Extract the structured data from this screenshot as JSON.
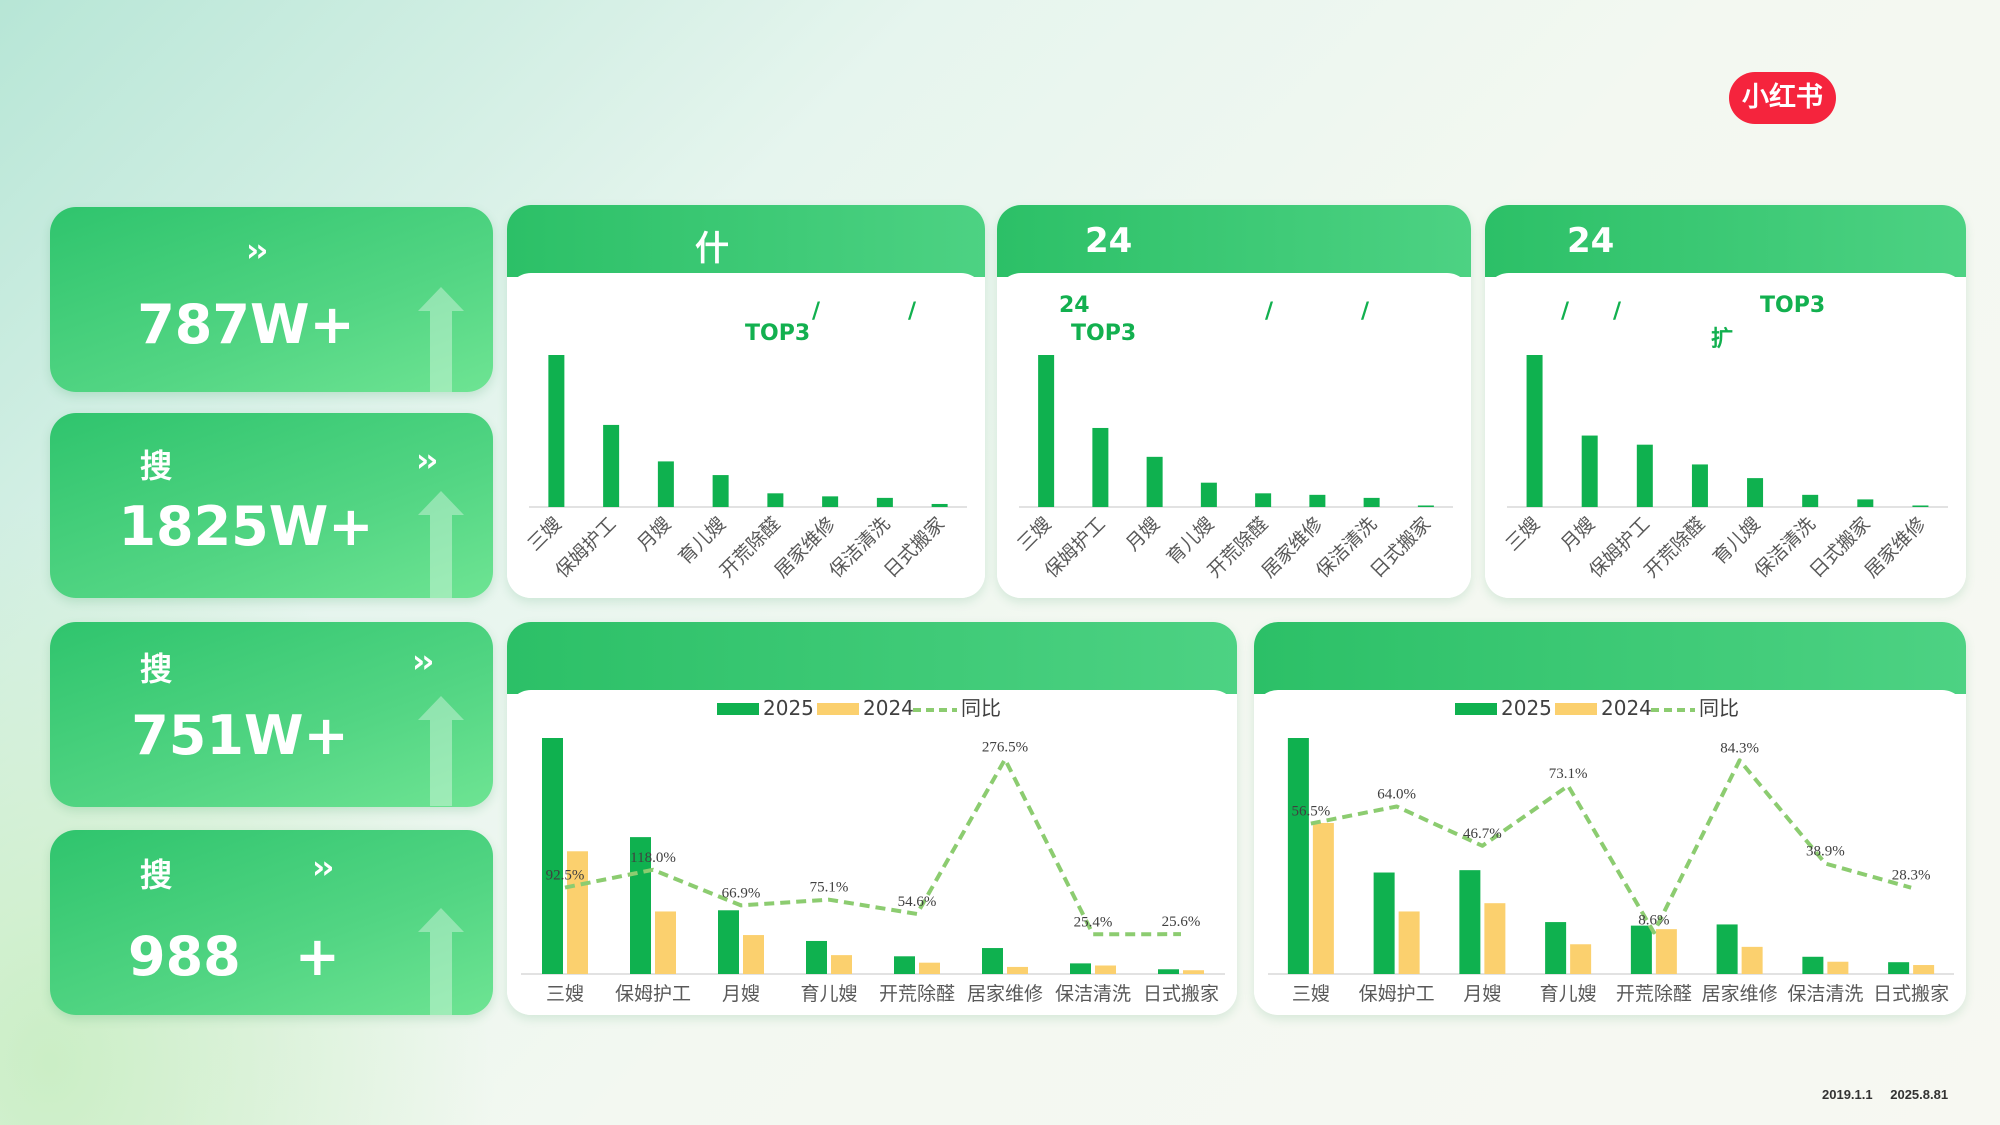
{
  "brand": {
    "logo_text": "小红书"
  },
  "metrics": [
    {
      "label": "",
      "chevron": "››",
      "value": "787W+"
    },
    {
      "label": "搜",
      "chevron": "››",
      "value": "1825W+"
    },
    {
      "label": "搜",
      "chevron": "››",
      "value": "751W+"
    },
    {
      "label": "搜",
      "chevron": "››",
      "value": "988　+"
    }
  ],
  "panels": {
    "top1": {
      "title": "什",
      "sub1": "/　　　　/",
      "sub2": "TOP3"
    },
    "top2": {
      "title": "24",
      "sub1": "24",
      "sub2": "TOP3",
      "sub3": "/　　　　/"
    },
    "top3": {
      "title": "24",
      "sub1": "/　　/",
      "sub2": "TOP3",
      "sub3": "扩"
    },
    "bottom1": {
      "title": ""
    },
    "bottom2": {
      "title": ""
    }
  },
  "footer": {
    "start": "2019.1.1",
    "end": "2025.8.81"
  },
  "chart_data": [
    {
      "type": "bar",
      "categories": [
        "三嫂",
        "保姆护工",
        "月嫂",
        "育儿嫂",
        "开荒除醛",
        "居家维修",
        "保洁清洗",
        "日式搬家"
      ],
      "values": [
        100,
        54,
        30,
        21,
        9,
        7,
        6,
        2
      ],
      "color": "#0fb14f",
      "ylim": [
        0,
        100
      ]
    },
    {
      "type": "bar",
      "categories": [
        "三嫂",
        "保姆护工",
        "月嫂",
        "育儿嫂",
        "开荒除醛",
        "居家维修",
        "保洁清洗",
        "日式搬家"
      ],
      "values": [
        100,
        52,
        33,
        16,
        9,
        8,
        6,
        1
      ],
      "color": "#0fb14f",
      "ylim": [
        0,
        100
      ]
    },
    {
      "type": "bar",
      "categories": [
        "三嫂",
        "月嫂",
        "保姆护工",
        "开荒除醛",
        "育儿嫂",
        "保洁清洗",
        "日式搬家",
        "居家维修"
      ],
      "values": [
        100,
        47,
        41,
        28,
        19,
        8,
        5,
        1
      ],
      "color": "#0fb14f",
      "ylim": [
        0,
        100
      ]
    },
    {
      "type": "bar",
      "categories": [
        "三嫂",
        "保姆护工",
        "月嫂",
        "育儿嫂",
        "开荒除醛",
        "居家维修",
        "保洁清洗",
        "日式搬家"
      ],
      "series": [
        {
          "name": "2025",
          "values": [
            100,
            58,
            27,
            14,
            7.5,
            11,
            4.5,
            2
          ],
          "color": "#0fb14f"
        },
        {
          "name": "2024",
          "values": [
            52,
            26.5,
            16.5,
            8,
            4.8,
            3,
            3.6,
            1.6
          ],
          "color": "#fbd06e"
        },
        {
          "name": "同比",
          "type": "line",
          "values": [
            92.5,
            118.0,
            66.9,
            75.1,
            54.6,
            276.5,
            25.4,
            25.6
          ],
          "labels": [
            "92.5%",
            "118.0%",
            "66.9%",
            "75.1%",
            "54.6%",
            "276.5%",
            "25.4%",
            "25.6%"
          ],
          "color": "#8ccc70"
        }
      ],
      "ylim": [
        0,
        100
      ],
      "y2lim": [
        0,
        310
      ],
      "legend": "top-center"
    },
    {
      "type": "bar",
      "categories": [
        "三嫂",
        "保姆护工",
        "月嫂",
        "育儿嫂",
        "开荒除醛",
        "居家维修",
        "保洁清洗",
        "日式搬家"
      ],
      "series": [
        {
          "name": "2025",
          "values": [
            100,
            43,
            44,
            22,
            20.5,
            21,
            7.3,
            5
          ],
          "color": "#0fb14f"
        },
        {
          "name": "2024",
          "values": [
            64,
            26.5,
            30,
            12.6,
            19,
            11.5,
            5.2,
            3.8
          ],
          "color": "#fbd06e"
        },
        {
          "name": "同比",
          "type": "line",
          "values": [
            56.5,
            64.0,
            46.7,
            73.1,
            8.6,
            84.3,
            38.9,
            28.3
          ],
          "labels": [
            "56.5%",
            "64.0%",
            "46.7%",
            "73.1%",
            "8.6%",
            "84.3%",
            "38.9%",
            "28.3%"
          ],
          "color": "#8ccc70"
        }
      ],
      "ylim": [
        0,
        100
      ],
      "y2lim": [
        0,
        95
      ],
      "legend": "top-center"
    }
  ]
}
